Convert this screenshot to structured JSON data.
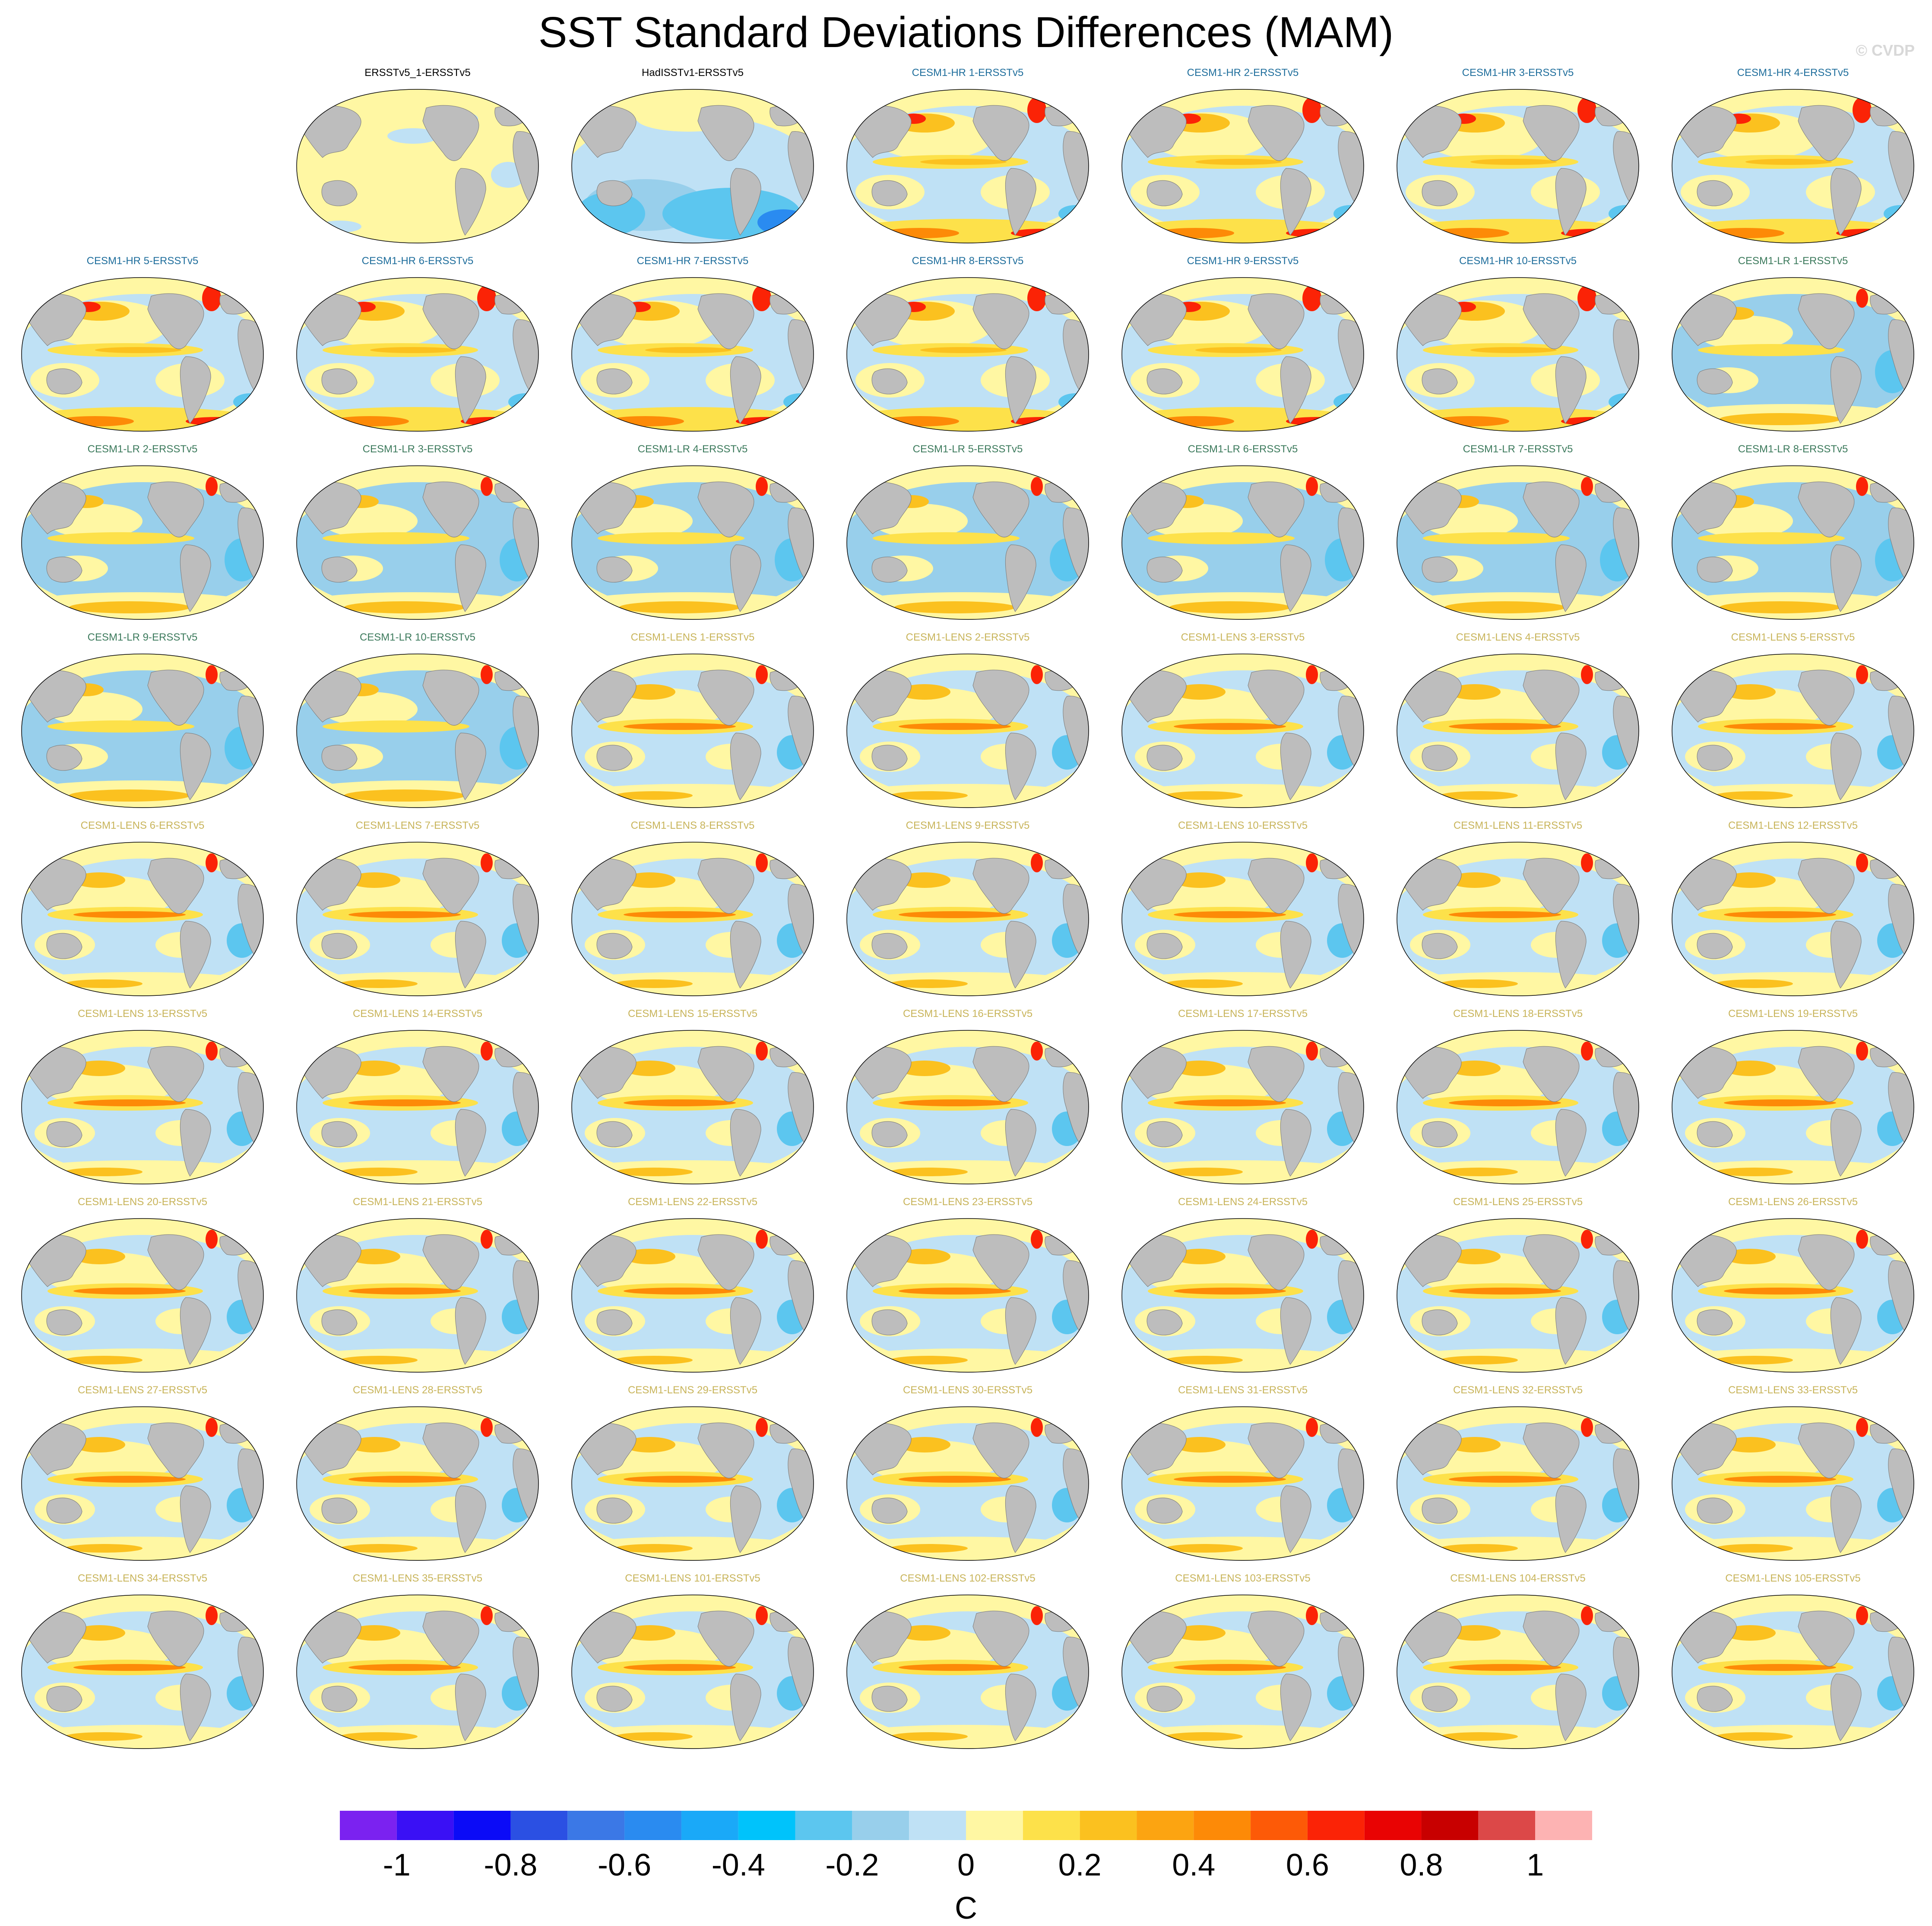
{
  "title": "SST Standard Deviations Differences (MAM)",
  "credit": "© CVDP",
  "colors": {
    "land": "#bdbdbd",
    "ocean_base": "#fff7a3",
    "reference_label": "#000000",
    "hr_label": "#1f6e9c",
    "lr_label": "#3c7a5c",
    "lens_label": "#c8b45a"
  },
  "chart_data": {
    "type": "heatmap",
    "projection": "robinson",
    "layout": {
      "rows": 9,
      "cols": 7,
      "first_row_starts_at_col": 1
    },
    "panels": [
      {
        "label": "ERSSTv5_1-ERSSTv5",
        "group": "reference",
        "pattern": "near_zero"
      },
      {
        "label": "HadISSTv1-ERSSTv5",
        "group": "reference",
        "pattern": "negative"
      },
      {
        "label": "CESM1-HR 1-ERSSTv5",
        "group": "hr",
        "pattern": "hr"
      },
      {
        "label": "CESM1-HR 2-ERSSTv5",
        "group": "hr",
        "pattern": "hr"
      },
      {
        "label": "CESM1-HR 3-ERSSTv5",
        "group": "hr",
        "pattern": "hr"
      },
      {
        "label": "CESM1-HR 4-ERSSTv5",
        "group": "hr",
        "pattern": "hr"
      },
      {
        "label": "CESM1-HR 5-ERSSTv5",
        "group": "hr",
        "pattern": "hr"
      },
      {
        "label": "CESM1-HR 6-ERSSTv5",
        "group": "hr",
        "pattern": "hr"
      },
      {
        "label": "CESM1-HR 7-ERSSTv5",
        "group": "hr",
        "pattern": "hr"
      },
      {
        "label": "CESM1-HR 8-ERSSTv5",
        "group": "hr",
        "pattern": "hr"
      },
      {
        "label": "CESM1-HR 9-ERSSTv5",
        "group": "hr",
        "pattern": "hr"
      },
      {
        "label": "CESM1-HR 10-ERSSTv5",
        "group": "hr",
        "pattern": "hr"
      },
      {
        "label": "CESM1-LR 1-ERSSTv5",
        "group": "lr",
        "pattern": "lr"
      },
      {
        "label": "CESM1-LR 2-ERSSTv5",
        "group": "lr",
        "pattern": "lr"
      },
      {
        "label": "CESM1-LR 3-ERSSTv5",
        "group": "lr",
        "pattern": "lr"
      },
      {
        "label": "CESM1-LR 4-ERSSTv5",
        "group": "lr",
        "pattern": "lr"
      },
      {
        "label": "CESM1-LR 5-ERSSTv5",
        "group": "lr",
        "pattern": "lr"
      },
      {
        "label": "CESM1-LR 6-ERSSTv5",
        "group": "lr",
        "pattern": "lr"
      },
      {
        "label": "CESM1-LR 7-ERSSTv5",
        "group": "lr",
        "pattern": "lr"
      },
      {
        "label": "CESM1-LR 8-ERSSTv5",
        "group": "lr",
        "pattern": "lr"
      },
      {
        "label": "CESM1-LR 9-ERSSTv5",
        "group": "lr",
        "pattern": "lr"
      },
      {
        "label": "CESM1-LR 10-ERSSTv5",
        "group": "lr",
        "pattern": "lr"
      },
      {
        "label": "CESM1-LENS 1-ERSSTv5",
        "group": "lens",
        "pattern": "lens"
      },
      {
        "label": "CESM1-LENS 2-ERSSTv5",
        "group": "lens",
        "pattern": "lens"
      },
      {
        "label": "CESM1-LENS 3-ERSSTv5",
        "group": "lens",
        "pattern": "lens"
      },
      {
        "label": "CESM1-LENS 4-ERSSTv5",
        "group": "lens",
        "pattern": "lens"
      },
      {
        "label": "CESM1-LENS 5-ERSSTv5",
        "group": "lens",
        "pattern": "lens"
      },
      {
        "label": "CESM1-LENS 6-ERSSTv5",
        "group": "lens",
        "pattern": "lens"
      },
      {
        "label": "CESM1-LENS 7-ERSSTv5",
        "group": "lens",
        "pattern": "lens"
      },
      {
        "label": "CESM1-LENS 8-ERSSTv5",
        "group": "lens",
        "pattern": "lens"
      },
      {
        "label": "CESM1-LENS 9-ERSSTv5",
        "group": "lens",
        "pattern": "lens"
      },
      {
        "label": "CESM1-LENS 10-ERSSTv5",
        "group": "lens",
        "pattern": "lens"
      },
      {
        "label": "CESM1-LENS 11-ERSSTv5",
        "group": "lens",
        "pattern": "lens"
      },
      {
        "label": "CESM1-LENS 12-ERSSTv5",
        "group": "lens",
        "pattern": "lens"
      },
      {
        "label": "CESM1-LENS 13-ERSSTv5",
        "group": "lens",
        "pattern": "lens"
      },
      {
        "label": "CESM1-LENS 14-ERSSTv5",
        "group": "lens",
        "pattern": "lens"
      },
      {
        "label": "CESM1-LENS 15-ERSSTv5",
        "group": "lens",
        "pattern": "lens"
      },
      {
        "label": "CESM1-LENS 16-ERSSTv5",
        "group": "lens",
        "pattern": "lens"
      },
      {
        "label": "CESM1-LENS 17-ERSSTv5",
        "group": "lens",
        "pattern": "lens"
      },
      {
        "label": "CESM1-LENS 18-ERSSTv5",
        "group": "lens",
        "pattern": "lens"
      },
      {
        "label": "CESM1-LENS 19-ERSSTv5",
        "group": "lens",
        "pattern": "lens"
      },
      {
        "label": "CESM1-LENS 20-ERSSTv5",
        "group": "lens",
        "pattern": "lens"
      },
      {
        "label": "CESM1-LENS 21-ERSSTv5",
        "group": "lens",
        "pattern": "lens"
      },
      {
        "label": "CESM1-LENS 22-ERSSTv5",
        "group": "lens",
        "pattern": "lens"
      },
      {
        "label": "CESM1-LENS 23-ERSSTv5",
        "group": "lens",
        "pattern": "lens"
      },
      {
        "label": "CESM1-LENS 24-ERSSTv5",
        "group": "lens",
        "pattern": "lens"
      },
      {
        "label": "CESM1-LENS 25-ERSSTv5",
        "group": "lens",
        "pattern": "lens"
      },
      {
        "label": "CESM1-LENS 26-ERSSTv5",
        "group": "lens",
        "pattern": "lens"
      },
      {
        "label": "CESM1-LENS 27-ERSSTv5",
        "group": "lens",
        "pattern": "lens"
      },
      {
        "label": "CESM1-LENS 28-ERSSTv5",
        "group": "lens",
        "pattern": "lens"
      },
      {
        "label": "CESM1-LENS 29-ERSSTv5",
        "group": "lens",
        "pattern": "lens"
      },
      {
        "label": "CESM1-LENS 30-ERSSTv5",
        "group": "lens",
        "pattern": "lens"
      },
      {
        "label": "CESM1-LENS 31-ERSSTv5",
        "group": "lens",
        "pattern": "lens"
      },
      {
        "label": "CESM1-LENS 32-ERSSTv5",
        "group": "lens",
        "pattern": "lens"
      },
      {
        "label": "CESM1-LENS 33-ERSSTv5",
        "group": "lens",
        "pattern": "lens"
      },
      {
        "label": "CESM1-LENS 34-ERSSTv5",
        "group": "lens",
        "pattern": "lens"
      },
      {
        "label": "CESM1-LENS 35-ERSSTv5",
        "group": "lens",
        "pattern": "lens"
      },
      {
        "label": "CESM1-LENS 101-ERSSTv5",
        "group": "lens",
        "pattern": "lens"
      },
      {
        "label": "CESM1-LENS 102-ERSSTv5",
        "group": "lens",
        "pattern": "lens"
      },
      {
        "label": "CESM1-LENS 103-ERSSTv5",
        "group": "lens",
        "pattern": "lens"
      },
      {
        "label": "CESM1-LENS 104-ERSSTv5",
        "group": "lens",
        "pattern": "lens"
      },
      {
        "label": "CESM1-LENS 105-ERSSTv5",
        "group": "lens",
        "pattern": "lens"
      }
    ],
    "colorbar": {
      "unit": "C",
      "levels": [
        -1.1,
        -1,
        -0.9,
        -0.8,
        -0.7,
        -0.6,
        -0.5,
        -0.4,
        -0.3,
        -0.2,
        -0.1,
        0,
        0.1,
        0.2,
        0.3,
        0.4,
        0.5,
        0.6,
        0.7,
        0.8,
        0.9,
        1,
        1.1
      ],
      "colors": [
        "#7b22f0",
        "#3a10f5",
        "#0b0bf7",
        "#2b50e3",
        "#3b78e6",
        "#2a8bf0",
        "#1aa9f8",
        "#00c3fb",
        "#5cc6ef",
        "#98cfeb",
        "#bfe1f5",
        "#fff7a3",
        "#fde14a",
        "#fbc11f",
        "#fca411",
        "#fd8a07",
        "#fd5a07",
        "#fb2306",
        "#e90303",
        "#c80000",
        "#dc4848",
        "#fdb3b3"
      ],
      "tick_values": [
        -1,
        -0.8,
        -0.6,
        -0.4,
        -0.2,
        0,
        0.2,
        0.4,
        0.6,
        0.8,
        1
      ],
      "tick_labels": [
        "-1",
        "-0.8",
        "-0.6",
        "-0.4",
        "-0.2",
        "0",
        "0.2",
        "0.4",
        "0.6",
        "0.8",
        "1"
      ]
    }
  }
}
